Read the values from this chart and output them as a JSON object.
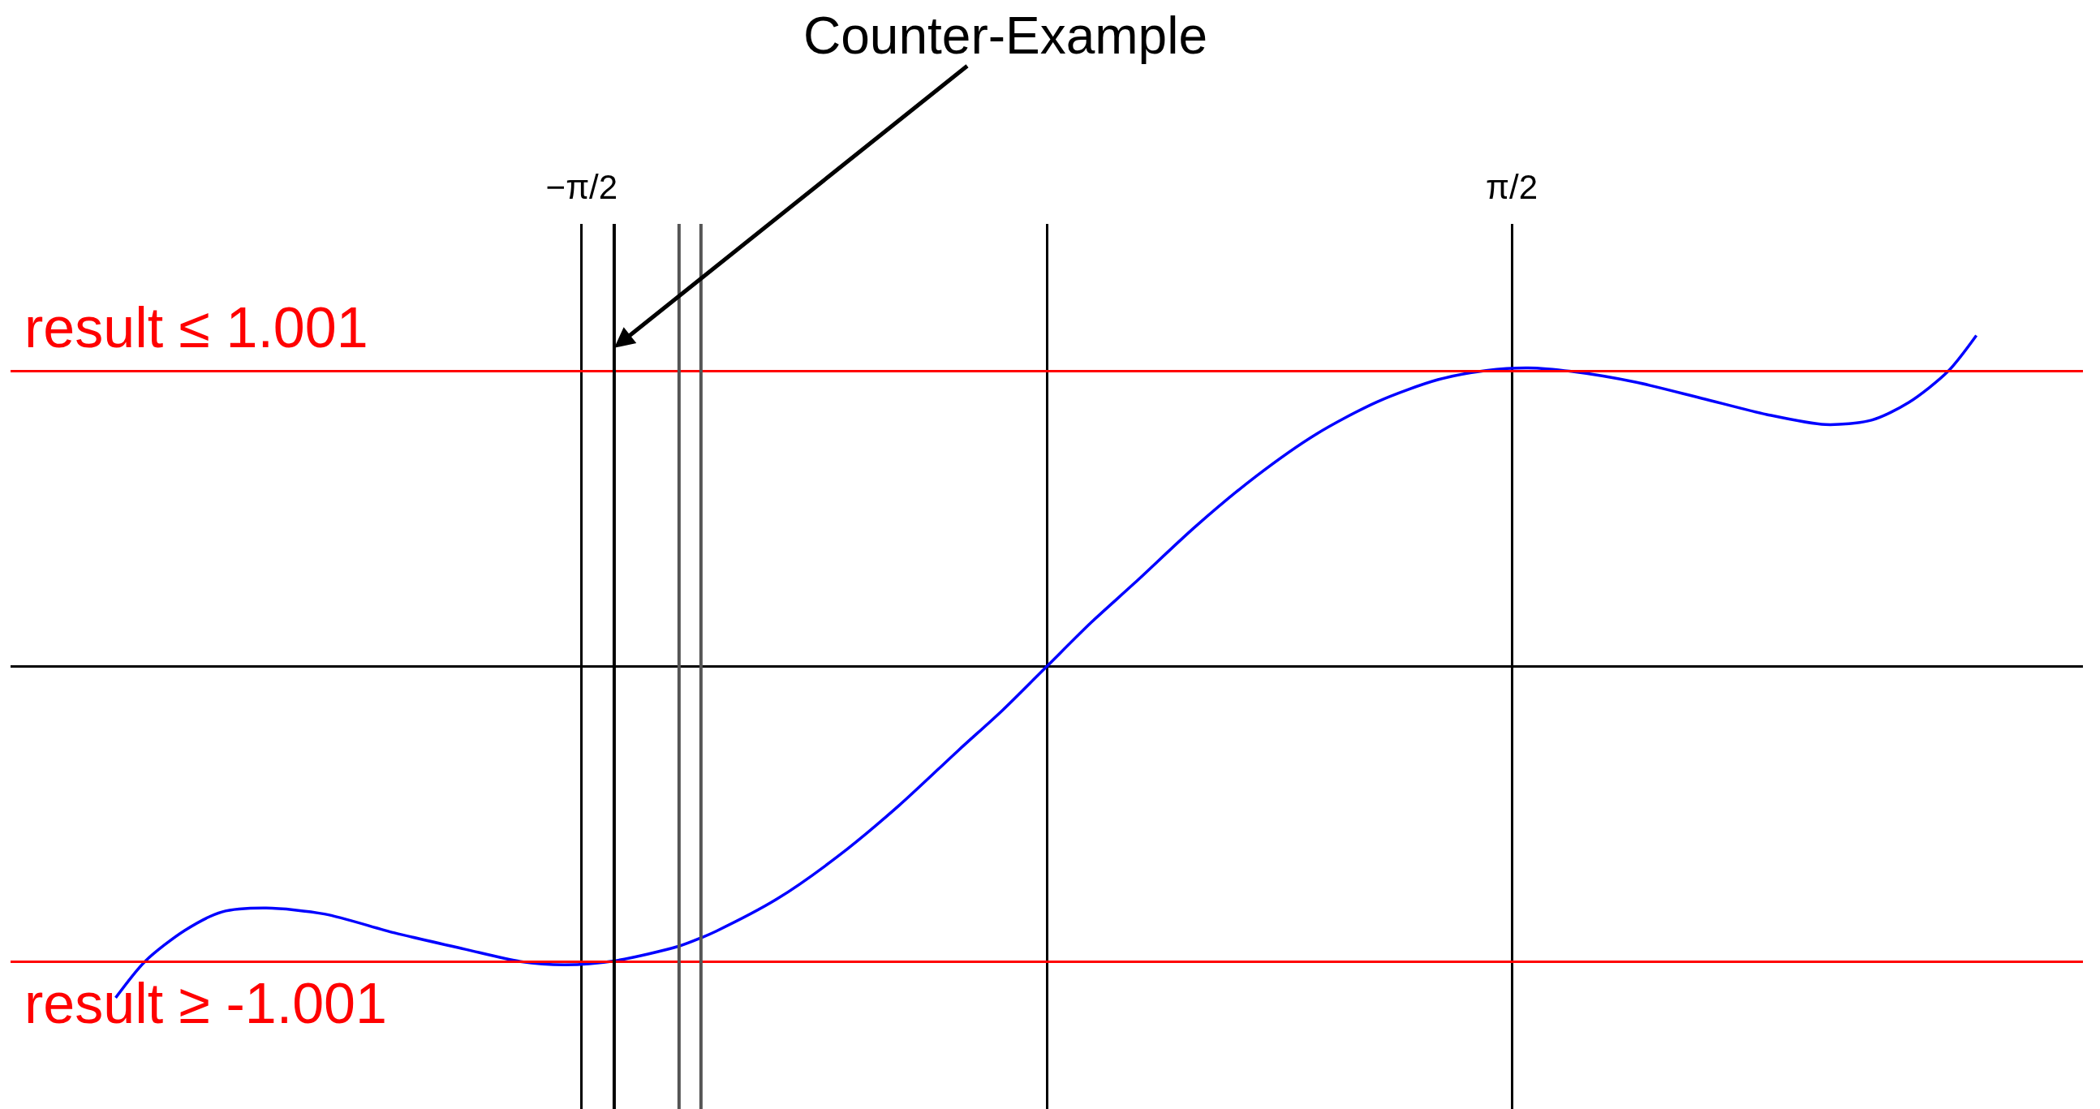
{
  "chart_data": {
    "type": "line",
    "x": [
      -3.145,
      -3.046,
      -2.912,
      -2.786,
      -2.636,
      -2.44,
      -2.203,
      -1.967,
      -1.778,
      -1.628,
      -1.461,
      -1.242,
      -1.168,
      -1.116,
      -0.911,
      -0.706,
      -0.502,
      -0.297,
      -0.15,
      0,
      0.15,
      0.297,
      0.502,
      0.706,
      0.911,
      1.116,
      1.321,
      1.484,
      1.626,
      1.772,
      1.992,
      2.212,
      2.432,
      2.63,
      2.786,
      2.912,
      3.044,
      3.14
    ],
    "series": [
      {
        "color": "#0000ff",
        "values": [
          -1.123,
          -1.0,
          -0.895,
          -0.832,
          -0.819,
          -0.839,
          -0.903,
          -0.958,
          -1.0,
          -1.011,
          -0.998,
          -0.948,
          -0.92,
          -0.897,
          -0.788,
          -0.644,
          -0.474,
          -0.283,
          -0.149,
          0,
          0.149,
          0.283,
          0.474,
          0.644,
          0.788,
          0.897,
          0.972,
          1.003,
          1.012,
          1.0,
          0.963,
          0.909,
          0.854,
          0.82,
          0.835,
          0.895,
          1.0,
          1.122
        ]
      }
    ],
    "xlim": [
      -3.5,
      3.5
    ],
    "ylim": [
      -1.5,
      1.5
    ],
    "xticks": [
      {
        "value": -1.5708,
        "label": "−π/2"
      },
      {
        "value": 1.5708,
        "label": "π/2"
      }
    ],
    "tick_labels": "x",
    "grid": "x",
    "ref_lines": [
      {
        "axis": "y",
        "value": 1.001,
        "label": "result ≤ 1.001",
        "color": "#ff0000"
      },
      {
        "axis": "y",
        "value": -1.001,
        "label": "result ≥ -1.001",
        "color": "#ff0000"
      },
      {
        "axis": "x",
        "value": -1.461,
        "color": "#000000"
      },
      {
        "axis": "x",
        "value": -1.242,
        "color": "#555555"
      },
      {
        "axis": "x",
        "value": -1.168,
        "color": "#555555"
      }
    ],
    "annotations": [
      {
        "text": "Counter-Example",
        "x": -1.461,
        "y": 1.08
      }
    ]
  }
}
